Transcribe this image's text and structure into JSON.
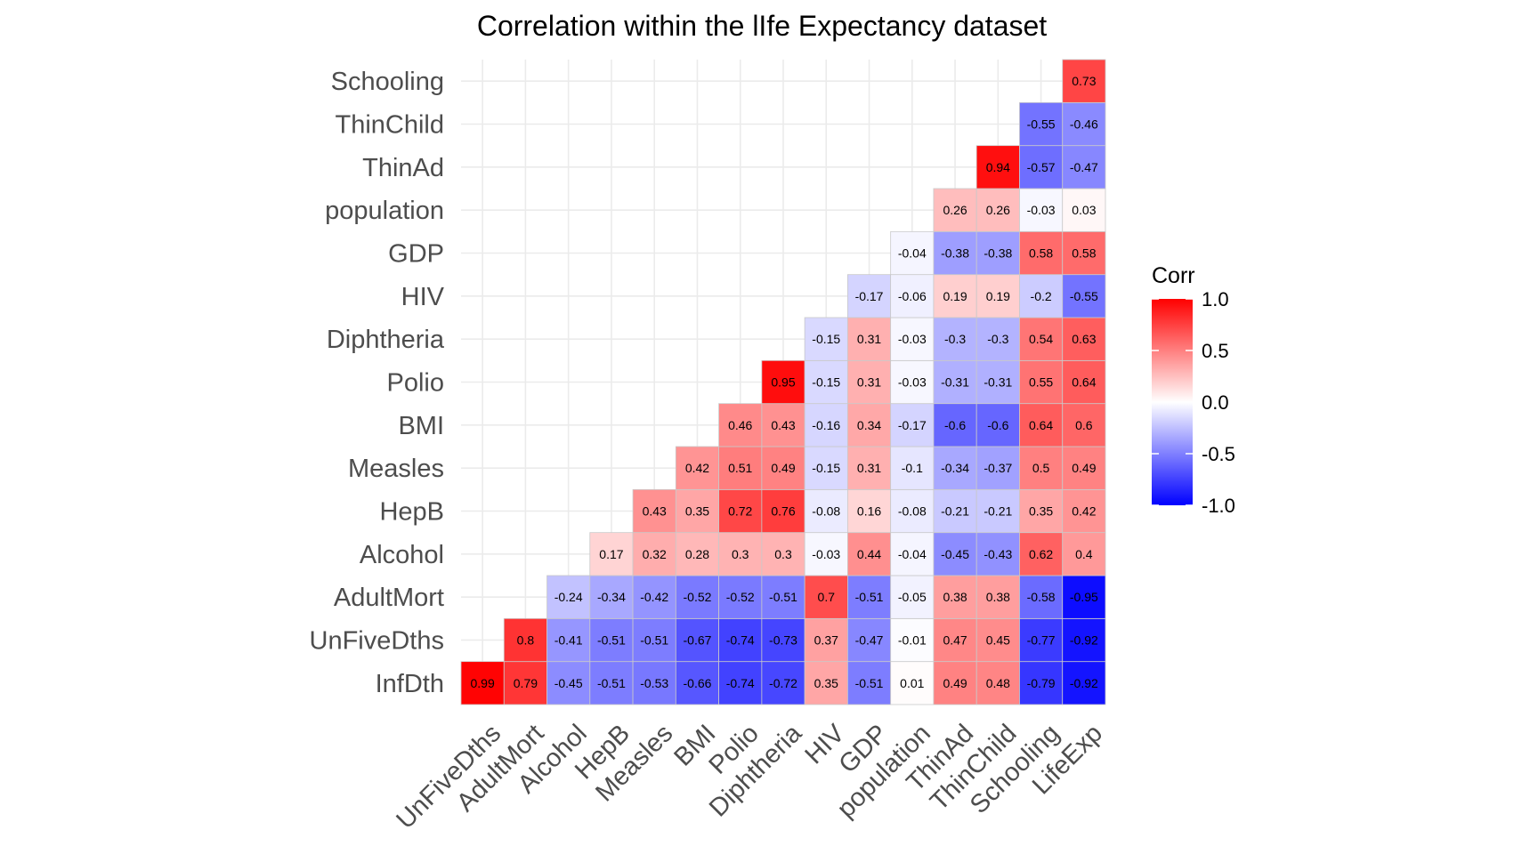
{
  "chart_data": {
    "type": "heatmap",
    "title": "Correlation within the lIfe Expectancy dataset",
    "x_labels": [
      "UnFiveDths",
      "AdultMort",
      "Alcohol",
      "HepB",
      "Measles",
      "BMI",
      "Polio",
      "Diphtheria",
      "HIV",
      "GDP",
      "population",
      "ThinAd",
      "ThinChild",
      "Schooling",
      "LifeExp"
    ],
    "y_labels": [
      "InfDth",
      "UnFiveDths",
      "AdultMort",
      "Alcohol",
      "HepB",
      "Measles",
      "BMI",
      "Polio",
      "Diphtheria",
      "HIV",
      "GDP",
      "population",
      "ThinAd",
      "ThinChild",
      "Schooling"
    ],
    "values": [
      [
        0.99,
        0.79,
        -0.45,
        -0.51,
        -0.53,
        -0.66,
        -0.74,
        -0.72,
        0.35,
        -0.51,
        0.01,
        0.49,
        0.48,
        -0.79,
        -0.92
      ],
      [
        null,
        0.8,
        -0.41,
        -0.51,
        -0.51,
        -0.67,
        -0.74,
        -0.73,
        0.37,
        -0.47,
        -0.01,
        0.47,
        0.45,
        -0.77,
        -0.92
      ],
      [
        null,
        null,
        -0.24,
        -0.34,
        -0.42,
        -0.52,
        -0.52,
        -0.51,
        0.7,
        -0.51,
        -0.05,
        0.38,
        0.38,
        -0.58,
        -0.95
      ],
      [
        null,
        null,
        null,
        0.17,
        0.32,
        0.28,
        0.3,
        0.3,
        -0.03,
        0.44,
        -0.04,
        -0.45,
        -0.43,
        0.62,
        0.4
      ],
      [
        null,
        null,
        null,
        null,
        0.43,
        0.35,
        0.72,
        0.76,
        -0.08,
        0.16,
        -0.08,
        -0.21,
        -0.21,
        0.35,
        0.42
      ],
      [
        null,
        null,
        null,
        null,
        null,
        0.42,
        0.51,
        0.49,
        -0.15,
        0.31,
        -0.1,
        -0.34,
        -0.37,
        0.5,
        0.49
      ],
      [
        null,
        null,
        null,
        null,
        null,
        null,
        0.46,
        0.43,
        -0.16,
        0.34,
        -0.17,
        -0.6,
        -0.6,
        0.64,
        0.6
      ],
      [
        null,
        null,
        null,
        null,
        null,
        null,
        null,
        0.95,
        -0.15,
        0.31,
        -0.03,
        -0.31,
        -0.31,
        0.55,
        0.64
      ],
      [
        null,
        null,
        null,
        null,
        null,
        null,
        null,
        null,
        -0.15,
        0.31,
        -0.03,
        -0.3,
        -0.3,
        0.54,
        0.63
      ],
      [
        null,
        null,
        null,
        null,
        null,
        null,
        null,
        null,
        null,
        -0.17,
        -0.06,
        0.19,
        0.19,
        -0.2,
        -0.55
      ],
      [
        null,
        null,
        null,
        null,
        null,
        null,
        null,
        null,
        null,
        null,
        -0.04,
        -0.38,
        -0.38,
        0.58,
        0.58
      ],
      [
        null,
        null,
        null,
        null,
        null,
        null,
        null,
        null,
        null,
        null,
        null,
        0.26,
        0.26,
        -0.03,
        0.03
      ],
      [
        null,
        null,
        null,
        null,
        null,
        null,
        null,
        null,
        null,
        null,
        null,
        null,
        0.94,
        -0.57,
        -0.47
      ],
      [
        null,
        null,
        null,
        null,
        null,
        null,
        null,
        null,
        null,
        null,
        null,
        null,
        null,
        -0.55,
        -0.46
      ],
      [
        null,
        null,
        null,
        null,
        null,
        null,
        null,
        null,
        null,
        null,
        null,
        null,
        null,
        null,
        0.73
      ]
    ],
    "value_range": [
      -1.0,
      1.0
    ],
    "colors": {
      "low": "#0000ff",
      "mid": "#ffffff",
      "high": "#ff0000"
    },
    "legend": {
      "title": "Corr",
      "ticks": [
        1.0,
        0.5,
        0.0,
        -0.5,
        -1.0
      ],
      "tick_labels": [
        "1.0",
        "0.5",
        "0.0",
        "-0.5",
        "-1.0"
      ],
      "position": "right"
    },
    "grid": true
  }
}
